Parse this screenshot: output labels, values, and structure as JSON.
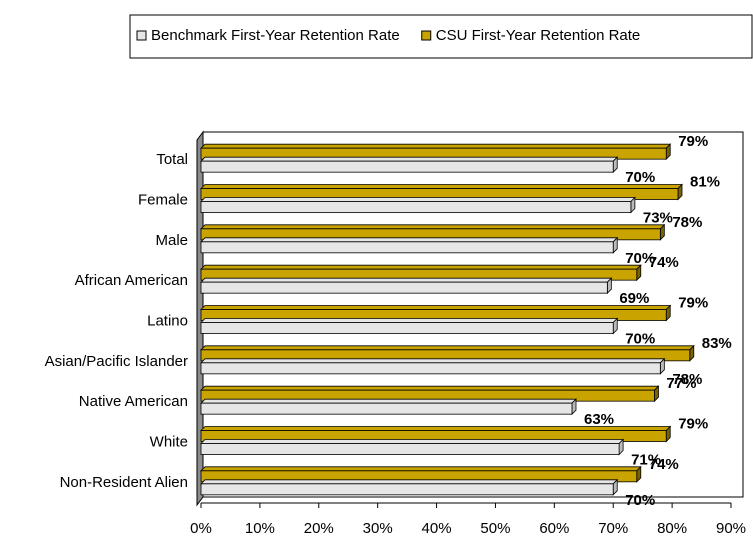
{
  "chart_data": {
    "type": "hbar",
    "categories": [
      "Total",
      "Female",
      "Male",
      "African American",
      "Latino",
      "Asian/Pacific Islander",
      "Native American",
      "White",
      "Non-Resident Alien"
    ],
    "series": [
      {
        "name": "Benchmark First-Year Retention Rate",
        "color": "#e6e6e6",
        "values": [
          70,
          73,
          70,
          69,
          70,
          78,
          63,
          71,
          70
        ],
        "value_labels": [
          "70%",
          "73%",
          "70%",
          "69%",
          "70%",
          "78%",
          "63%",
          "71%",
          "70%"
        ]
      },
      {
        "name": "CSU First-Year Retention Rate",
        "color": "#c9a400",
        "values": [
          79,
          81,
          78,
          74,
          79,
          83,
          77,
          79,
          74
        ],
        "value_labels": [
          "79%",
          "81%",
          "78%",
          "74%",
          "79%",
          "83%",
          "77%",
          "79%",
          "74%"
        ]
      }
    ],
    "xlim": [
      0,
      90
    ],
    "xticks": [
      {
        "value": 0,
        "label": "0%"
      },
      {
        "value": 10,
        "label": "10%"
      },
      {
        "value": 20,
        "label": "20%"
      },
      {
        "value": 30,
        "label": "30%"
      },
      {
        "value": 40,
        "label": "40%"
      },
      {
        "value": 50,
        "label": "50%"
      },
      {
        "value": 60,
        "label": "60%"
      },
      {
        "value": 70,
        "label": "70%"
      },
      {
        "value": 80,
        "label": "80%"
      },
      {
        "value": 90,
        "label": "90%"
      }
    ],
    "legend": "top"
  }
}
